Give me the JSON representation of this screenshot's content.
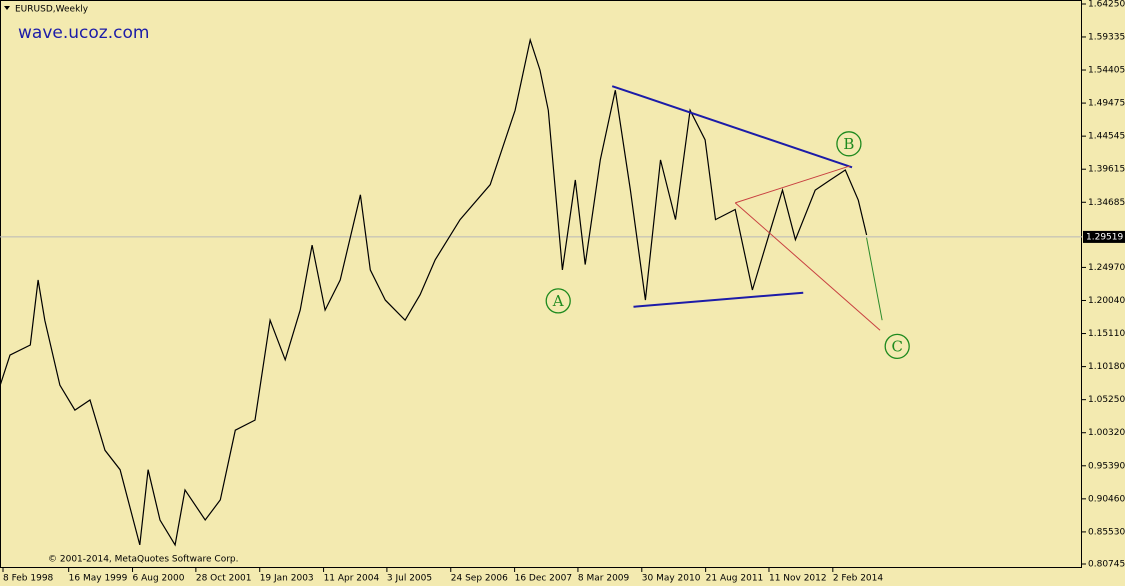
{
  "chart_data": {
    "type": "line",
    "title": "EURUSD,Weekly",
    "watermark": "wave.ucoz.com",
    "copyright": "© 2001-2014, MetaQuotes Software Corp.",
    "xlim": [
      1998.047,
      2018.89
    ],
    "ylim": [
      0.80745,
      1.6425
    ],
    "xticks": [
      {
        "value": 1998.105,
        "label": "8 Feb 1998"
      },
      {
        "value": 1999.37,
        "label": "16 May 1999"
      },
      {
        "value": 2000.6,
        "label": "6 Aug 2000"
      },
      {
        "value": 2001.82,
        "label": "28 Oct 2001"
      },
      {
        "value": 2003.05,
        "label": "19 Jan 2003"
      },
      {
        "value": 2004.28,
        "label": "11 Apr 2004"
      },
      {
        "value": 2005.5,
        "label": "3 Jul 2005"
      },
      {
        "value": 2006.73,
        "label": "24 Sep 2006"
      },
      {
        "value": 2007.96,
        "label": "16 Dec 2007"
      },
      {
        "value": 2009.18,
        "label": "8 Mar 2009"
      },
      {
        "value": 2010.41,
        "label": "30 May 2010"
      },
      {
        "value": 2011.64,
        "label": "21 Aug 2011"
      },
      {
        "value": 2012.86,
        "label": "11 Nov 2012"
      },
      {
        "value": 2014.09,
        "label": "2 Feb 2014"
      }
    ],
    "yticks": [
      {
        "value": 1.6425,
        "label": "1.64250"
      },
      1.59335,
      1.54405,
      1.49475,
      1.44545,
      1.39615,
      1.34685,
      {
        "value": 1.2497,
        "label": "1.24970"
      },
      {
        "value": 1.2004,
        "label": "1.20040"
      },
      {
        "value": 1.1511,
        "label": "1.15110"
      },
      {
        "value": 1.1018,
        "label": "1.10180"
      },
      {
        "value": 1.0525,
        "label": "1.05250"
      },
      {
        "value": 1.0032,
        "label": "1.00320"
      },
      {
        "value": 0.9539,
        "label": "0.95390"
      },
      {
        "value": 0.9046,
        "label": "0.90460"
      },
      {
        "value": 0.8553,
        "label": "0.85530"
      },
      0.80745
    ],
    "last_price": {
      "value": 1.29519,
      "label": "1.29519"
    },
    "series": [
      {
        "name": "EURUSD",
        "color": "#000000",
        "x": [
          1998.05,
          1998.24,
          1998.63,
          1998.78,
          1998.91,
          1999.2,
          1999.49,
          1999.78,
          2000.07,
          2000.36,
          2000.74,
          2000.9,
          2001.13,
          2001.42,
          2001.61,
          2002.0,
          2002.29,
          2002.58,
          2002.96,
          2003.25,
          2003.54,
          2003.83,
          2004.06,
          2004.31,
          2004.6,
          2004.99,
          2005.18,
          2005.47,
          2005.85,
          2006.14,
          2006.43,
          2006.91,
          2007.49,
          2007.97,
          2008.26,
          2008.45,
          2008.61,
          2008.88,
          2009.13,
          2009.32,
          2009.61,
          2009.9,
          2010.19,
          2010.48,
          2010.77,
          2011.06,
          2011.34,
          2011.63,
          2011.83,
          2012.21,
          2012.54,
          2012.89,
          2013.12,
          2013.37,
          2013.75,
          2014.04,
          2014.33,
          2014.58,
          2014.74
        ],
        "values": [
          1.074,
          1.119,
          1.134,
          1.231,
          1.171,
          1.074,
          1.037,
          1.052,
          0.977,
          0.948,
          0.836,
          0.948,
          0.873,
          0.836,
          0.918,
          0.873,
          0.903,
          1.007,
          1.022,
          1.171,
          1.112,
          1.186,
          1.283,
          1.186,
          1.231,
          1.358,
          1.246,
          1.201,
          1.171,
          1.209,
          1.261,
          1.321,
          1.373,
          1.484,
          1.589,
          1.544,
          1.484,
          1.246,
          1.38,
          1.254,
          1.41,
          1.514,
          1.365,
          1.201,
          1.41,
          1.321,
          1.484,
          1.44,
          1.321,
          1.336,
          1.216,
          1.306,
          1.365,
          1.291,
          1.365,
          1.38,
          1.395,
          1.35,
          1.298
        ]
      }
    ],
    "trendlines": [
      {
        "color": "#1c1ca8",
        "x": [
          2009.84,
          2014.46
        ],
        "y": [
          1.52,
          1.399
        ]
      },
      {
        "color": "#1c1ca8",
        "x": [
          2010.25,
          2013.52
        ],
        "y": [
          1.191,
          1.212
        ]
      },
      {
        "color": "#c84040",
        "x": [
          2012.21,
          2014.42
        ],
        "y": [
          1.346,
          1.401
        ]
      },
      {
        "color": "#c84040",
        "x": [
          2012.21,
          2015.0
        ],
        "y": [
          1.346,
          1.156
        ]
      },
      {
        "color": "#2a8a2a",
        "x": [
          2014.74,
          2015.04
        ],
        "y": [
          1.294,
          1.171
        ]
      }
    ],
    "wave_labels": [
      {
        "label": "A",
        "x": 2008.8,
        "y": 1.1998
      },
      {
        "label": "B",
        "x": 2014.4,
        "y": 1.434
      },
      {
        "label": "C",
        "x": 2015.33,
        "y": 1.132
      }
    ]
  }
}
